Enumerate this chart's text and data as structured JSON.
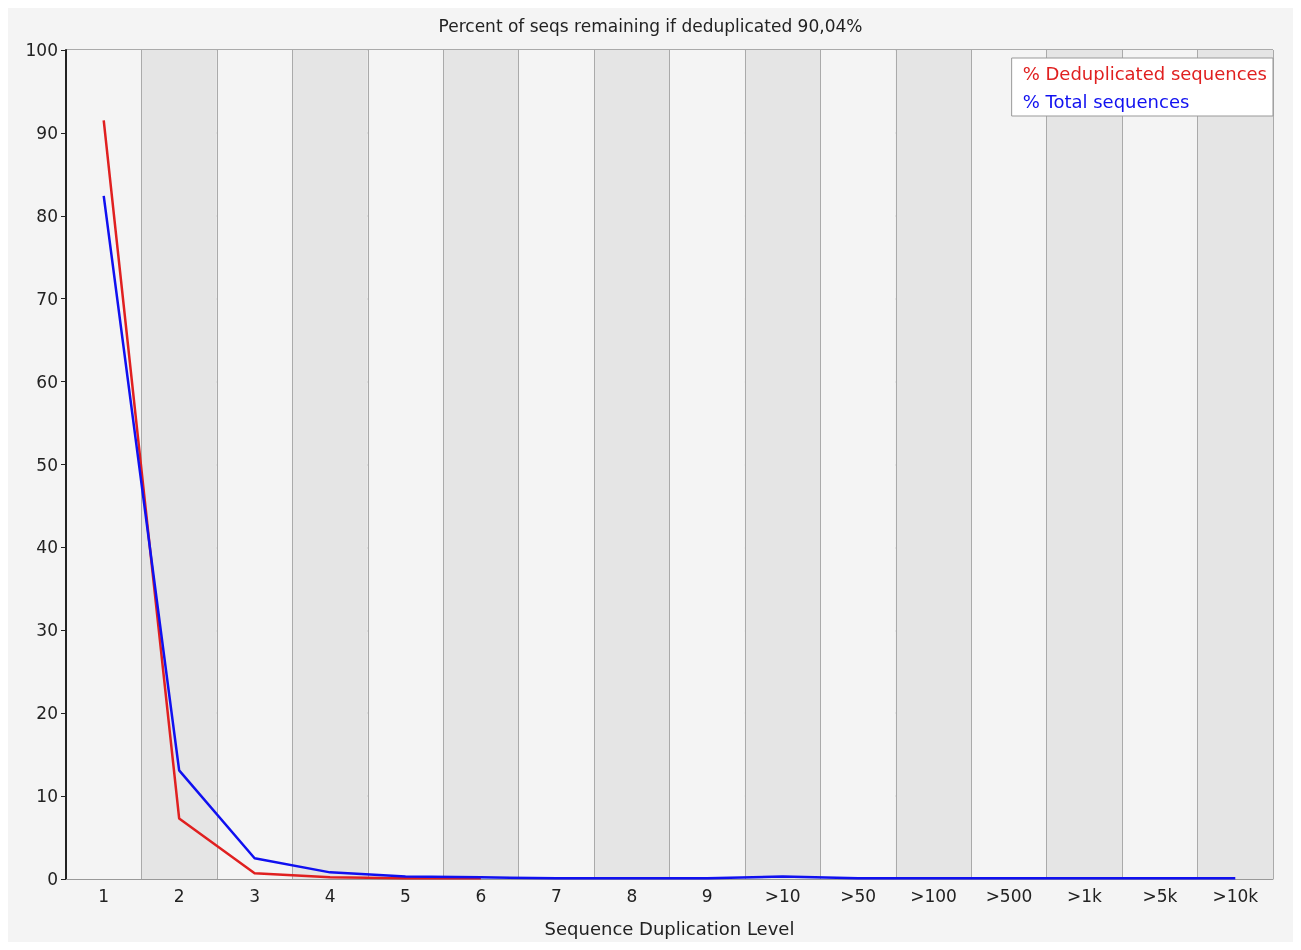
{
  "chart_data": {
    "type": "line",
    "title": "Percent of seqs remaining if deduplicated 90,04%",
    "xlabel": "Sequence Duplication Level",
    "categories": [
      "1",
      "2",
      "3",
      "4",
      "5",
      "6",
      "7",
      "8",
      "9",
      ">10",
      ">50",
      ">100",
      ">500",
      ">1k",
      ">5k",
      ">10k"
    ],
    "series": [
      {
        "name": "% Deduplicated sequences",
        "color": "#e02020",
        "values": [
          91.5,
          7.3,
          0.7,
          0.2,
          0.1,
          0.1,
          null,
          null,
          null,
          null,
          null,
          null,
          null,
          null,
          null,
          null
        ]
      },
      {
        "name": "% Total sequences",
        "color": "#1010f0",
        "values": [
          82.4,
          13.1,
          2.5,
          0.8,
          0.3,
          0.2,
          0.1,
          0.1,
          0.1,
          0.3,
          0.1,
          0.1,
          0.1,
          0.1,
          0.1,
          0.1
        ]
      }
    ],
    "ylim": [
      0,
      100
    ],
    "yticks": [
      0,
      10,
      20,
      30,
      40,
      50,
      60,
      70,
      80,
      90,
      100
    ],
    "grid": true,
    "legend": "top right",
    "marker": "none",
    "line_style": "solid"
  }
}
